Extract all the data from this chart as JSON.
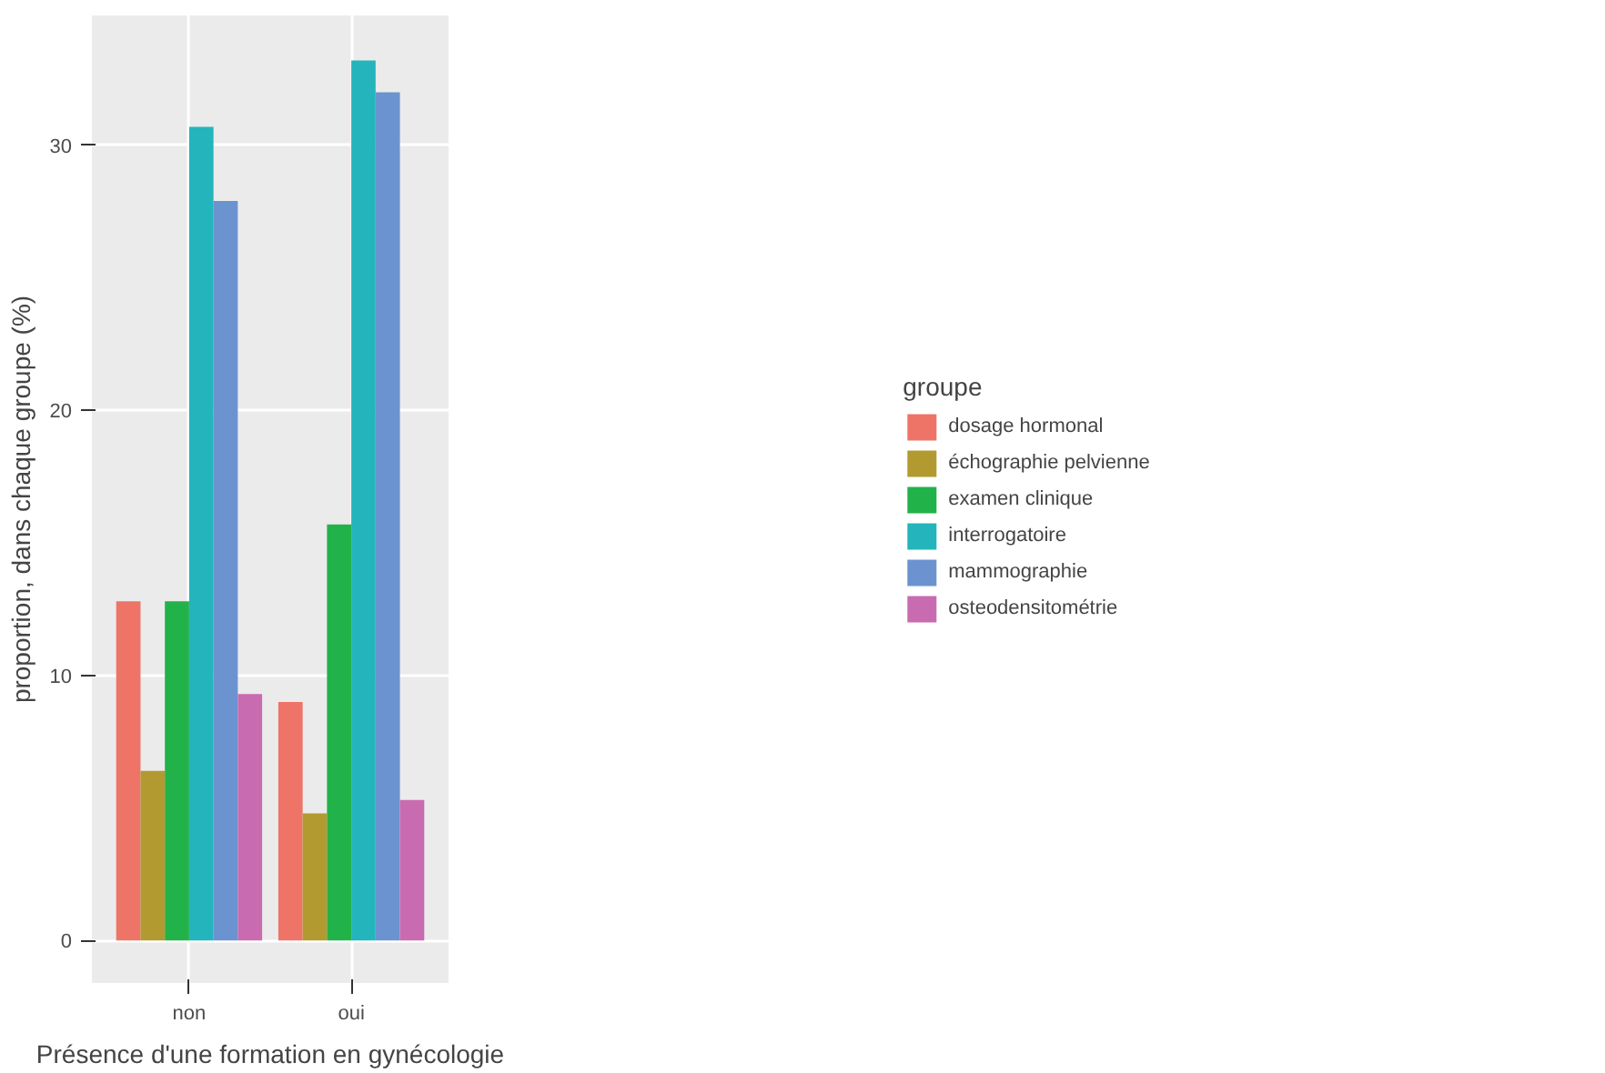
{
  "chart_data": {
    "type": "bar",
    "xlabel": "Présence d'une formation en gynécologie",
    "ylabel": "proportion, dans chaque groupe (%)",
    "legend_title": "groupe",
    "categories": [
      "non",
      "oui"
    ],
    "series": [
      {
        "name": "dosage hormonal",
        "color": "#ee7468",
        "values": [
          12.8,
          9.0
        ]
      },
      {
        "name": "échographie pelvienne",
        "color": "#b39a30",
        "values": [
          6.4,
          4.8
        ]
      },
      {
        "name": "examen clinique",
        "color": "#22b24a",
        "values": [
          12.8,
          15.7
        ]
      },
      {
        "name": "interrogatoire",
        "color": "#23b5bb",
        "values": [
          30.7,
          33.2
        ]
      },
      {
        "name": "mammographie",
        "color": "#6b93cf",
        "values": [
          27.9,
          32.0
        ]
      },
      {
        "name": "osteodensitométrie",
        "color": "#c96bb0",
        "values": [
          9.3,
          5.3
        ]
      }
    ],
    "ylim": [
      -1.6,
      34.9
    ],
    "yticks": [
      0,
      10,
      20,
      30
    ],
    "grid": true,
    "legend": "right"
  }
}
